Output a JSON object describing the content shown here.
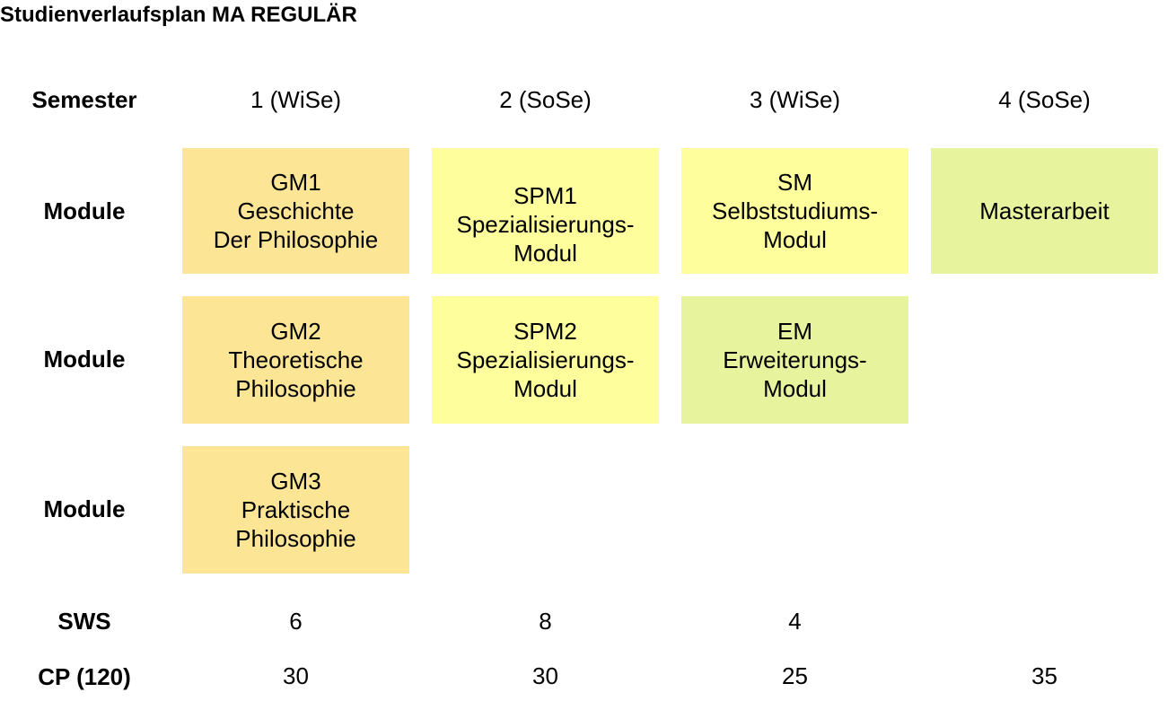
{
  "title": "Studienverlaufsplan MA REGULÄR",
  "row_labels": {
    "semester": "Semester",
    "module": "Module",
    "sws": "SWS",
    "cp": "CP (120)"
  },
  "semesters": [
    "1 (WiSe)",
    "2 (SoSe)",
    "3 (WiSe)",
    "4 (SoSe)"
  ],
  "modules": {
    "gm1": {
      "lines": [
        "GM1",
        "Geschichte",
        "Der Philosophie"
      ],
      "color": "#fde596"
    },
    "spm1": {
      "lines": [
        "SPM1",
        "Spezialisierungs-",
        "Modul"
      ],
      "color": "#fefe9c"
    },
    "sm": {
      "lines": [
        "SM",
        "Selbststudiums-",
        "Modul"
      ],
      "color": "#fefe9c"
    },
    "ma": {
      "lines": [
        "Masterarbeit"
      ],
      "color": "#e8f39d"
    },
    "gm2": {
      "lines": [
        "GM2",
        "Theoretische",
        "Philosophie"
      ],
      "color": "#fde596"
    },
    "spm2": {
      "lines": [
        "SPM2",
        "Spezialisierungs-",
        "Modul"
      ],
      "color": "#fefe9c"
    },
    "em": {
      "lines": [
        "EM",
        "Erweiterungs-",
        "Modul"
      ],
      "color": "#e8f39d"
    },
    "gm3": {
      "lines": [
        "GM3",
        "Praktische",
        "Philosophie"
      ],
      "color": "#fde596"
    }
  },
  "sws": [
    "6",
    "8",
    "4",
    ""
  ],
  "cp": [
    "30",
    "30",
    "25",
    "35"
  ]
}
